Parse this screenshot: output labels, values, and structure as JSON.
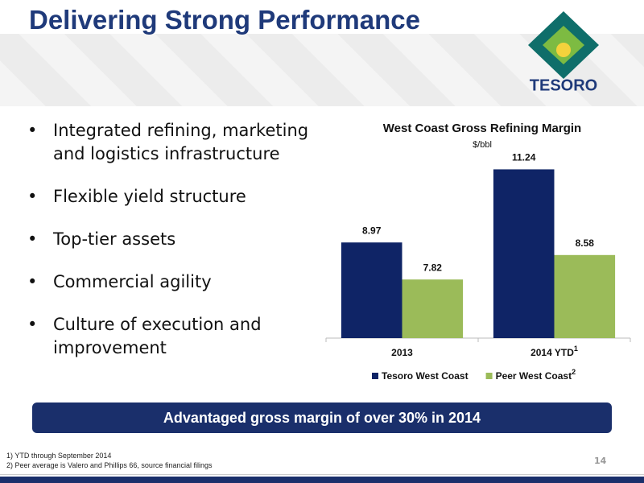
{
  "title": "Delivering Strong Performance",
  "logo_text": "TESORO",
  "bullets": [
    "Integrated refining, marketing and logistics infrastructure",
    "Flexible yield structure",
    "Top-tier assets",
    "Commercial agility",
    "Culture of execution and improvement"
  ],
  "banner": "Advantaged gross margin of over 30% in 2014",
  "footnotes": [
    "1) YTD through September 2014",
    "2) Peer average is Valero and Phillips 66, source financial filings"
  ],
  "page_number": 14,
  "chart_data": {
    "type": "bar",
    "title": "West Coast Gross Refining Margin",
    "subtitle": "$/bbl",
    "categories": [
      "2013",
      "2014 YTD"
    ],
    "category_superscripts": [
      null,
      "1"
    ],
    "series": [
      {
        "name": "Tesoro West Coast",
        "color": "#0f2466",
        "values": [
          8.97,
          11.24
        ]
      },
      {
        "name": "Peer West Coast",
        "name_superscript": "2",
        "color": "#9bbb59",
        "values": [
          7.82,
          8.58
        ]
      }
    ],
    "ylim": [
      6,
      12
    ]
  }
}
